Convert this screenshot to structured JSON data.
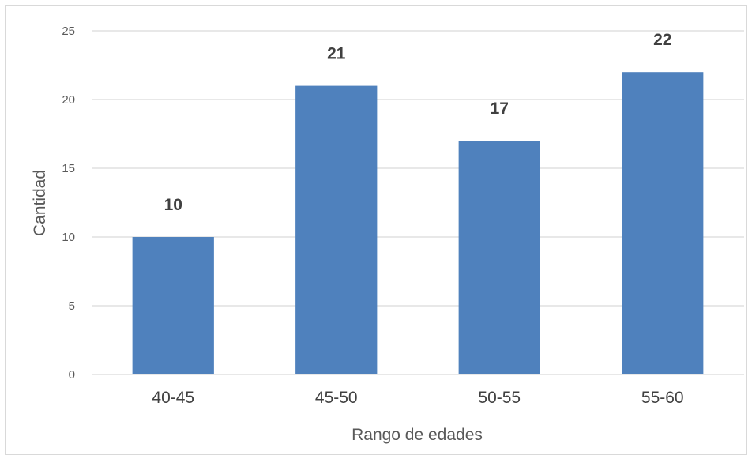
{
  "chart_data": {
    "type": "bar",
    "categories": [
      "40-45",
      "45-50",
      "50-55",
      "55-60"
    ],
    "values": [
      10,
      21,
      17,
      22
    ],
    "data_labels": [
      "10",
      "21",
      "17",
      "22"
    ],
    "title": "",
    "xlabel": "Rango de edades",
    "ylabel": "Cantidad",
    "ylim": [
      0,
      25
    ],
    "yticks": [
      0,
      5,
      10,
      15,
      20,
      25
    ],
    "ytick_labels": [
      "0",
      "5",
      "10",
      "15",
      "20",
      "25"
    ],
    "grid": true,
    "legend": "none",
    "bar_color": "#4f81bd"
  }
}
